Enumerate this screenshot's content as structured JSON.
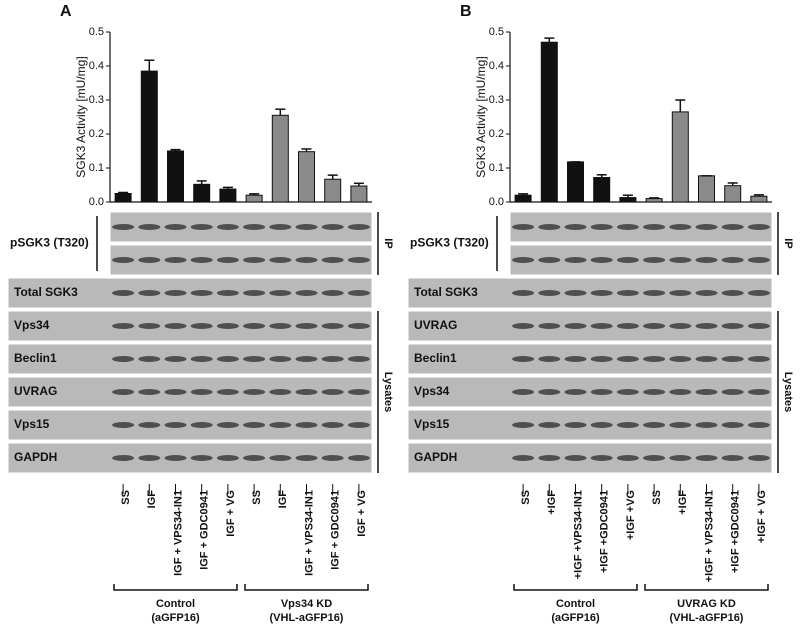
{
  "chart_data": [
    {
      "type": "bar",
      "ylabel": "SGK3 Activity [mU/mg]",
      "categories": [
        "SS",
        "IGF",
        "IGF + VPS34-IN1",
        "IGF + GDC0941",
        "IGF + VG",
        "SS",
        "IGF",
        "IGF + VPS34-IN1",
        "IGF + GDC0941",
        "IGF + VG"
      ],
      "values": [
        0.025,
        0.385,
        0.15,
        0.052,
        0.038,
        0.02,
        0.255,
        0.148,
        0.067,
        0.047
      ],
      "errors": [
        0.003,
        0.032,
        0.004,
        0.01,
        0.005,
        0.004,
        0.018,
        0.008,
        0.012,
        0.008
      ],
      "colors": [
        "#111111",
        "#111111",
        "#111111",
        "#111111",
        "#111111",
        "#8a8a8a",
        "#8a8a8a",
        "#8a8a8a",
        "#8a8a8a",
        "#8a8a8a"
      ],
      "ylim": [
        0,
        0.5
      ],
      "yticks": [
        {
          "value": 0,
          "label": "0.0"
        },
        0.1,
        0.2,
        0.3,
        0.4,
        0.5
      ]
    },
    {
      "type": "bar",
      "ylabel": "SGK3 Activity [mU/mg]",
      "categories": [
        "SS",
        "+IGF",
        "+IGF +VPS34-IN1",
        "+IGF +GDC0941",
        "+IGF +VG",
        "SS",
        "+IGF",
        "+IGF + VPS34-IN1",
        "+IGF +GDC0941",
        "+IGF + VG"
      ],
      "values": [
        0.02,
        0.47,
        0.118,
        0.072,
        0.013,
        0.01,
        0.265,
        0.077,
        0.048,
        0.017
      ],
      "errors": [
        0.004,
        0.012,
        0,
        0.008,
        0.007,
        0.002,
        0.035,
        0,
        0.008,
        0.004
      ],
      "colors": [
        "#111111",
        "#111111",
        "#111111",
        "#111111",
        "#111111",
        "#8a8a8a",
        "#8a8a8a",
        "#8a8a8a",
        "#8a8a8a",
        "#8a8a8a"
      ],
      "ylim": [
        0,
        0.5
      ],
      "yticks": [
        {
          "value": 0,
          "label": "0.0"
        },
        0.1,
        0.2,
        0.3,
        0.4,
        0.5
      ]
    }
  ],
  "panels": [
    {
      "letter": "A",
      "blot_rows": [
        {
          "label": "pSGK3 (T320)",
          "strips": 2
        },
        {
          "label": "Total SGK3",
          "strips": 1
        },
        {
          "label": "Vps34",
          "strips": 1
        },
        {
          "label": "Beclin1",
          "strips": 1
        },
        {
          "label": "UVRAG",
          "strips": 1
        },
        {
          "label": "Vps15",
          "strips": 1
        },
        {
          "label": "GAPDH",
          "strips": 1
        }
      ],
      "side_labels": [
        "IP",
        "Lysates"
      ],
      "groups": [
        {
          "name": "Control",
          "sub": "(aGFP16)"
        },
        {
          "name": "Vps34 KD",
          "sub": "(VHL-aGFP16)"
        }
      ]
    },
    {
      "letter": "B",
      "blot_rows": [
        {
          "label": "pSGK3 (T320)",
          "strips": 2
        },
        {
          "label": "Total SGK3",
          "strips": 1
        },
        {
          "label": "UVRAG",
          "strips": 1
        },
        {
          "label": "Beclin1",
          "strips": 1
        },
        {
          "label": "Vps34",
          "strips": 1
        },
        {
          "label": "Vps15",
          "strips": 1
        },
        {
          "label": "GAPDH",
          "strips": 1
        }
      ],
      "side_labels": [
        "IP",
        "Lysates"
      ],
      "groups": [
        {
          "name": "Control",
          "sub": "(aGFP16)"
        },
        {
          "name": "UVRAG KD",
          "sub": "(VHL-aGFP16)"
        }
      ]
    }
  ]
}
